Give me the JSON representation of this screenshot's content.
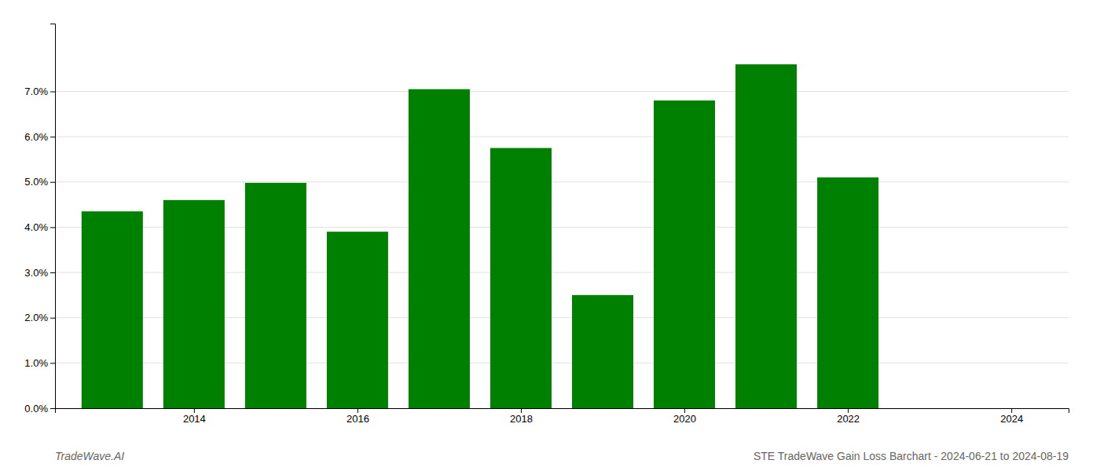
{
  "chart_data": {
    "type": "bar",
    "title": "STE TradeWave Gain Loss Barchart - 2024-06-21 to 2024-08-19",
    "annotations": [
      "TradeWave.AI"
    ],
    "x": [
      2013,
      2014,
      2015,
      2016,
      2017,
      2018,
      2019,
      2020,
      2021,
      2022
    ],
    "values": [
      0.0435,
      0.046,
      0.0498,
      0.039,
      0.0705,
      0.0575,
      0.025,
      0.068,
      0.076,
      0.051
    ],
    "color": "#008000",
    "xlim": [
      2012.3,
      2024.7
    ],
    "xticks": [
      2014,
      2016,
      2018,
      2020,
      2022,
      2024
    ],
    "ylim": [
      0,
      0.085
    ],
    "yticks": [
      {
        "value": 0.0,
        "label": "0.0%"
      },
      {
        "value": 0.01,
        "label": "1.0%"
      },
      {
        "value": 0.02,
        "label": "2.0%"
      },
      {
        "value": 0.03,
        "label": "3.0%"
      },
      {
        "value": 0.04,
        "label": "4.0%"
      },
      {
        "value": 0.05,
        "label": "5.0%"
      },
      {
        "value": 0.06,
        "label": "6.0%"
      },
      {
        "value": 0.07,
        "label": "7.0%"
      }
    ],
    "grid": true
  }
}
